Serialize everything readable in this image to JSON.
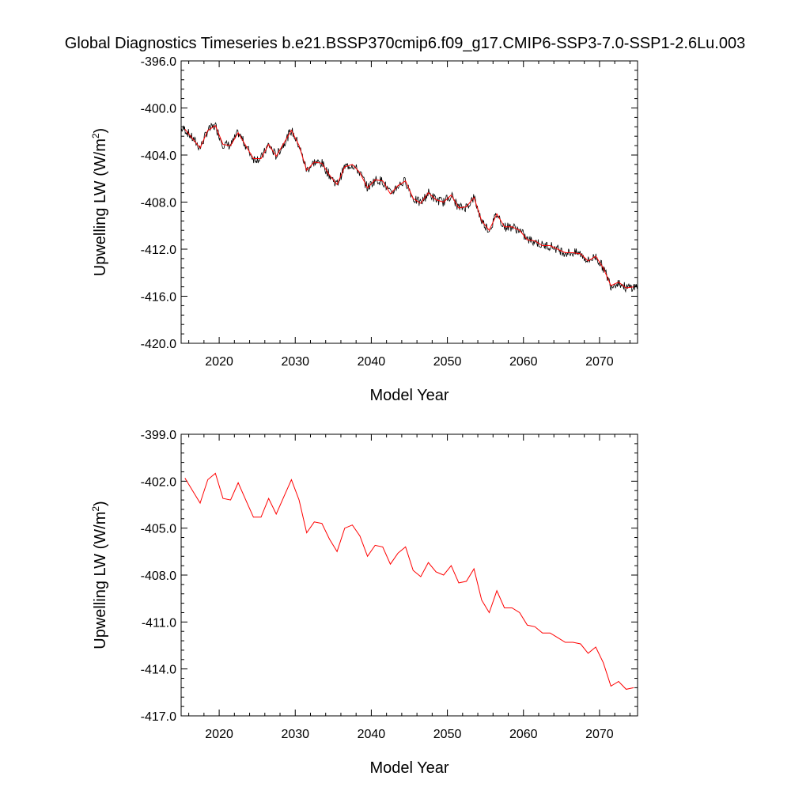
{
  "title": "Global Diagnostics Timeseries b.e21.BSSP370cmip6.f09_g17.CMIP6-SSP3-7.0-SSP1-2.6Lu.003",
  "colors": {
    "monthly": "#000000",
    "annual": "#ff0000",
    "axis": "#000000"
  },
  "chart_data": [
    {
      "type": "line",
      "xlabel": "Model Year",
      "ylabel": "Upwelling LW (W/m",
      "ylabel_sup": "2",
      "ylabel_tail": ")",
      "xlim": [
        2015,
        2075
      ],
      "ylim": [
        -420.0,
        -396.0
      ],
      "x_ticks": [
        2020,
        2030,
        2040,
        2050,
        2060,
        2070
      ],
      "x_tick_labels": [
        "2020",
        "2030",
        "2040",
        "2050",
        "2060",
        "2070"
      ],
      "y_ticks": [
        -396.0,
        -400.0,
        -404.0,
        -408.0,
        -412.0,
        -416.0,
        -420.0
      ],
      "y_tick_labels": [
        "-396.0",
        "-400.0",
        "-404.0",
        "-408.0",
        "-412.0",
        "-416.0",
        "-420.0"
      ],
      "monthly_amplitude": 2.0,
      "series": [
        {
          "color": "#000000",
          "style": "monthly seasonal cycle around annual mean",
          "x_start": 2015.04,
          "x_step": 0.0833
        },
        {
          "color": "#ff0000",
          "style": "annual mean",
          "x": [
            2015.5,
            2016.5,
            2017.5,
            2018.5,
            2019.5,
            2020.5,
            2021.5,
            2022.5,
            2023.5,
            2024.5,
            2025.5,
            2026.5,
            2027.5,
            2028.5,
            2029.5,
            2030.5,
            2031.5,
            2032.5,
            2033.5,
            2034.5,
            2035.5,
            2036.5,
            2037.5,
            2038.5,
            2039.5,
            2040.5,
            2041.5,
            2042.5,
            2043.5,
            2044.5,
            2045.5,
            2046.5,
            2047.5,
            2048.5,
            2049.5,
            2050.5,
            2051.5,
            2052.5,
            2053.5,
            2054.5,
            2055.5,
            2056.5,
            2057.5,
            2058.5,
            2059.5,
            2060.5,
            2061.5,
            2062.5,
            2063.5,
            2064.5,
            2065.5,
            2066.5,
            2067.5,
            2068.5,
            2069.5,
            2070.5,
            2071.5,
            2072.5,
            2073.5,
            2074.5
          ],
          "y": [
            -401.8,
            -402.6,
            -403.4,
            -401.9,
            -401.5,
            -403.1,
            -403.2,
            -402.1,
            -403.2,
            -404.3,
            -404.3,
            -403.1,
            -404.1,
            -403.0,
            -401.9,
            -403.2,
            -405.3,
            -404.6,
            -404.7,
            -405.7,
            -406.5,
            -405.0,
            -404.8,
            -405.5,
            -406.8,
            -406.1,
            -406.2,
            -407.3,
            -406.6,
            -406.2,
            -407.7,
            -408.1,
            -407.2,
            -407.8,
            -408.0,
            -407.4,
            -408.5,
            -408.4,
            -407.6,
            -409.6,
            -410.4,
            -409.0,
            -410.1,
            -410.1,
            -410.4,
            -411.2,
            -411.3,
            -411.7,
            -411.7,
            -412.0,
            -412.3,
            -412.3,
            -412.4,
            -413.0,
            -412.6,
            -413.6,
            -415.1,
            -414.8,
            -415.3,
            -415.2
          ]
        }
      ]
    },
    {
      "type": "line",
      "xlabel": "Model Year",
      "ylabel": "Upwelling LW (W/m",
      "ylabel_sup": "2",
      "ylabel_tail": ")",
      "xlim": [
        2015,
        2075
      ],
      "ylim": [
        -417.0,
        -399.0
      ],
      "x_ticks": [
        2020,
        2030,
        2040,
        2050,
        2060,
        2070
      ],
      "x_tick_labels": [
        "2020",
        "2030",
        "2040",
        "2050",
        "2060",
        "2070"
      ],
      "y_ticks": [
        -399.0,
        -402.0,
        -405.0,
        -408.0,
        -411.0,
        -414.0,
        -417.0
      ],
      "y_tick_labels": [
        "-399.0",
        "-402.0",
        "-405.0",
        "-408.0",
        "-411.0",
        "-414.0",
        "-417.0"
      ],
      "series": [
        {
          "color": "#ff0000",
          "style": "annual mean",
          "x": [
            2015.5,
            2016.5,
            2017.5,
            2018.5,
            2019.5,
            2020.5,
            2021.5,
            2022.5,
            2023.5,
            2024.5,
            2025.5,
            2026.5,
            2027.5,
            2028.5,
            2029.5,
            2030.5,
            2031.5,
            2032.5,
            2033.5,
            2034.5,
            2035.5,
            2036.5,
            2037.5,
            2038.5,
            2039.5,
            2040.5,
            2041.5,
            2042.5,
            2043.5,
            2044.5,
            2045.5,
            2046.5,
            2047.5,
            2048.5,
            2049.5,
            2050.5,
            2051.5,
            2052.5,
            2053.5,
            2054.5,
            2055.5,
            2056.5,
            2057.5,
            2058.5,
            2059.5,
            2060.5,
            2061.5,
            2062.5,
            2063.5,
            2064.5,
            2065.5,
            2066.5,
            2067.5,
            2068.5,
            2069.5,
            2070.5,
            2071.5,
            2072.5,
            2073.5,
            2074.5
          ],
          "y": [
            -401.8,
            -402.6,
            -403.4,
            -401.9,
            -401.5,
            -403.1,
            -403.2,
            -402.1,
            -403.2,
            -404.3,
            -404.3,
            -403.1,
            -404.1,
            -403.0,
            -401.9,
            -403.2,
            -405.3,
            -404.6,
            -404.7,
            -405.7,
            -406.5,
            -405.0,
            -404.8,
            -405.5,
            -406.8,
            -406.1,
            -406.2,
            -407.3,
            -406.6,
            -406.2,
            -407.7,
            -408.1,
            -407.2,
            -407.8,
            -408.0,
            -407.4,
            -408.5,
            -408.4,
            -407.6,
            -409.6,
            -410.4,
            -409.0,
            -410.1,
            -410.1,
            -410.4,
            -411.2,
            -411.3,
            -411.7,
            -411.7,
            -412.0,
            -412.3,
            -412.3,
            -412.4,
            -413.0,
            -412.6,
            -413.6,
            -415.1,
            -414.8,
            -415.3,
            -415.2
          ]
        }
      ]
    }
  ]
}
